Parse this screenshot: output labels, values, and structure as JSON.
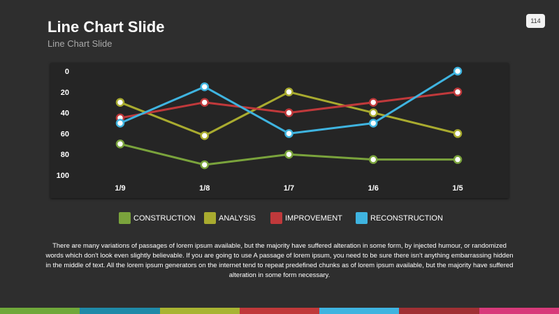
{
  "slide": {
    "title": "Line Chart Slide",
    "subtitle": "Line Chart Slide",
    "page_number": "114",
    "body_text": "There are many variations of passages of lorem ipsum available, but the majority have suffered alteration in some form, by injected humour, or randomized words which don't look even slightly believable. If you are going to use A passage of lorem ipsum, you need to be sure there isn't anything embarrassing hidden in the middle of text. All the lorem ipsum generators on the internet tend to repeat predefined chunks as of lorem ipsum available, but the majority have suffered alteration in some form necessary."
  },
  "footer_colors": [
    "#6fa83a",
    "#1f8aa8",
    "#a8b432",
    "#c0393a",
    "#3fb4e0",
    "#a03034",
    "#d83a7a"
  ],
  "chart_data": {
    "type": "line",
    "title": "",
    "xlabel": "",
    "ylabel": "",
    "categories": [
      "1/9",
      "1/8",
      "1/7",
      "1/6",
      "1/5"
    ],
    "yticks": [
      "0",
      "20",
      "40",
      "60",
      "80",
      "100"
    ],
    "ylim": [
      0,
      100
    ],
    "y_inverted": true,
    "grid": false,
    "legend_position": "bottom",
    "series": [
      {
        "name": "CONSTRUCTION",
        "color": "#7aa33c",
        "values": [
          70,
          90,
          80,
          85,
          85
        ]
      },
      {
        "name": "ANALYSIS",
        "color": "#a9ab2f",
        "values": [
          30,
          62,
          20,
          40,
          60
        ]
      },
      {
        "name": "IMPROVEMENT",
        "color": "#c0393b",
        "values": [
          45,
          30,
          40,
          30,
          20
        ]
      },
      {
        "name": "RECONSTRUCTION",
        "color": "#3fb4e0",
        "values": [
          50,
          15,
          60,
          50,
          0
        ]
      }
    ]
  }
}
